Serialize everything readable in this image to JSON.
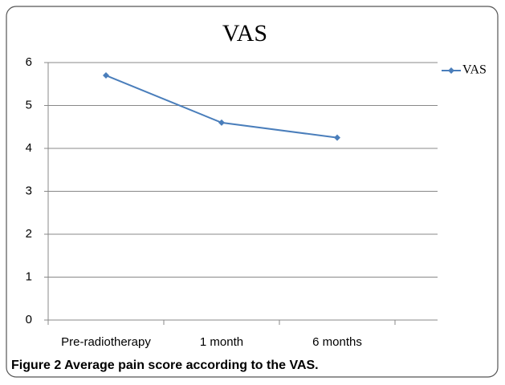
{
  "chart_data": {
    "type": "line",
    "title": "VAS",
    "categories": [
      "Pre-radiotherapy",
      "1 month",
      "6 months"
    ],
    "series": [
      {
        "name": "VAS",
        "color": "#4a7ebb",
        "values": [
          5.7,
          4.6,
          4.25
        ]
      }
    ],
    "ylim": [
      0,
      6
    ],
    "yticks": [
      0,
      1,
      2,
      3,
      4,
      5,
      6
    ],
    "grid": true,
    "legend": "right",
    "caption": "Figure 2 Average pain score according to the VAS."
  }
}
